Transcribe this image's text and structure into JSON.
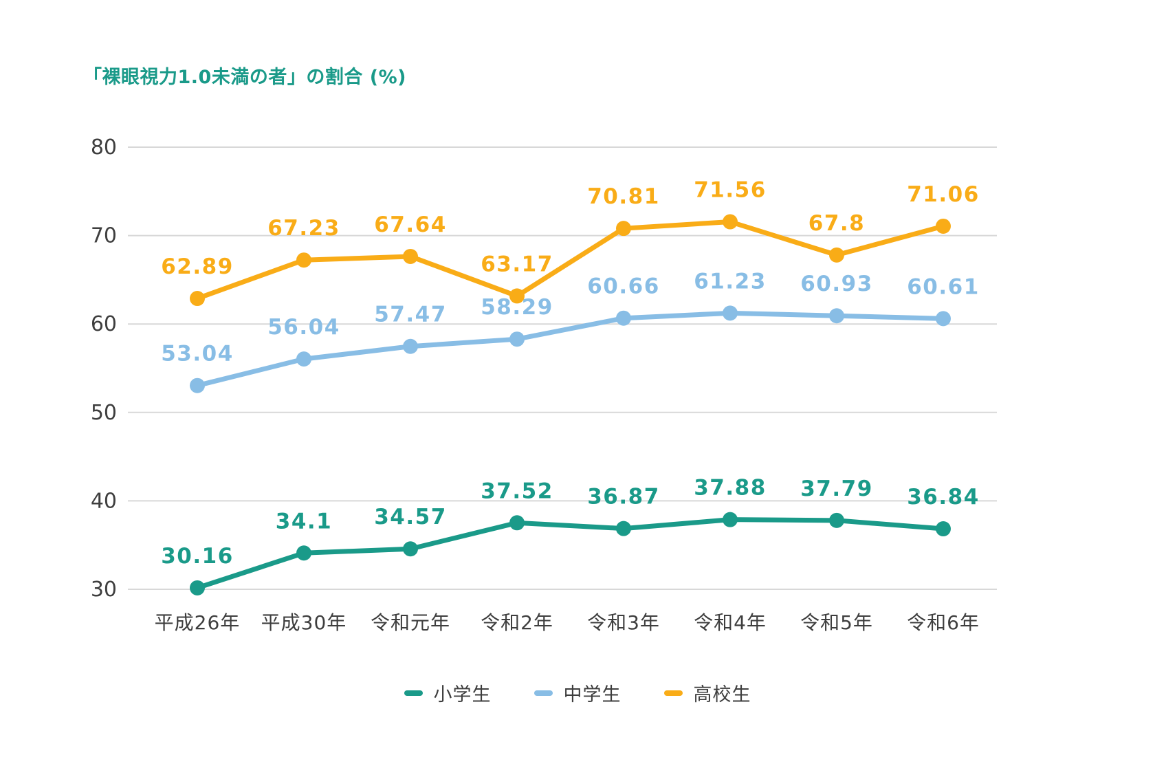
{
  "chart_title": "「裸眼視力1.0未満の者」の割合 (%)",
  "colors": {
    "title": "#1a9a89",
    "axis_text": "#3e3e3e",
    "gridline": "#d8d8d8",
    "background": "#ffffff"
  },
  "chart_data": {
    "type": "line",
    "title": "「裸眼視力1.0未満の者」の割合 (%)",
    "categories": [
      "平成26年",
      "平成30年",
      "令和元年",
      "令和2年",
      "令和3年",
      "令和4年",
      "令和5年",
      "令和6年"
    ],
    "series": [
      {
        "name": "小学生",
        "color": "#1a9a89",
        "values": [
          30.16,
          34.1,
          34.57,
          37.52,
          36.87,
          37.88,
          37.79,
          36.84
        ]
      },
      {
        "name": "中学生",
        "color": "#88bde5",
        "values": [
          53.04,
          56.04,
          57.47,
          58.29,
          60.66,
          61.23,
          60.93,
          60.61
        ]
      },
      {
        "name": "高校生",
        "color": "#f9ac17",
        "values": [
          62.89,
          67.23,
          67.64,
          63.17,
          70.81,
          71.56,
          67.8,
          71.06
        ]
      }
    ],
    "y_ticks": [
      80,
      70,
      60,
      50,
      40,
      30
    ],
    "ylim": [
      30,
      80
    ],
    "grid": true,
    "data_labels": true,
    "legend_position": "bottom"
  }
}
